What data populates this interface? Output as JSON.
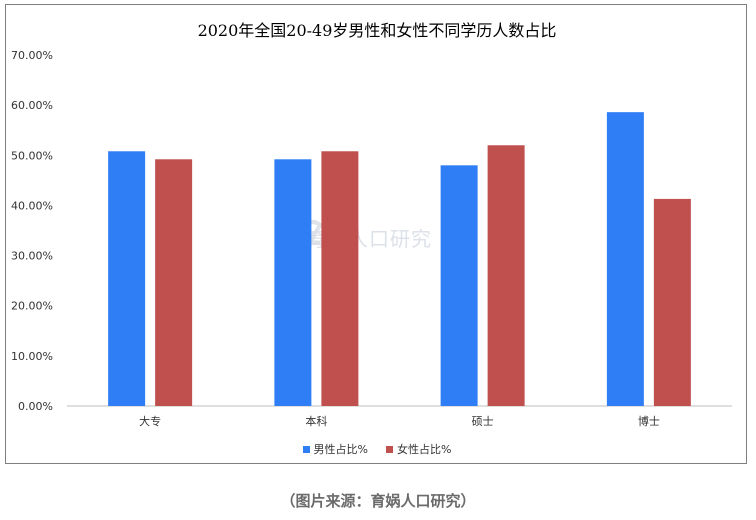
{
  "chart_data": {
    "type": "bar",
    "title": "2020年全国20-49岁男性和女性不同学历人数占比",
    "categories": [
      "大专",
      "本科",
      "硕士",
      "博士"
    ],
    "series": [
      {
        "name": "男性占比%",
        "values": [
          50.8,
          49.2,
          48.0,
          58.6
        ],
        "color": "#2f7ef5"
      },
      {
        "name": "女性占比%",
        "values": [
          49.2,
          50.8,
          52.0,
          41.3
        ],
        "color": "#c0504d"
      }
    ],
    "ylim": [
      0,
      70
    ],
    "yticks": [
      "0.00%",
      "10.00%",
      "20.00%",
      "30.00%",
      "40.00%",
      "50.00%",
      "60.00%",
      "70.00%"
    ],
    "xlabel": "",
    "ylabel": "",
    "grid": false,
    "legend_position": "bottom"
  },
  "watermark": "育娲人口研究",
  "source": "（图片来源：育娲人口研究）"
}
